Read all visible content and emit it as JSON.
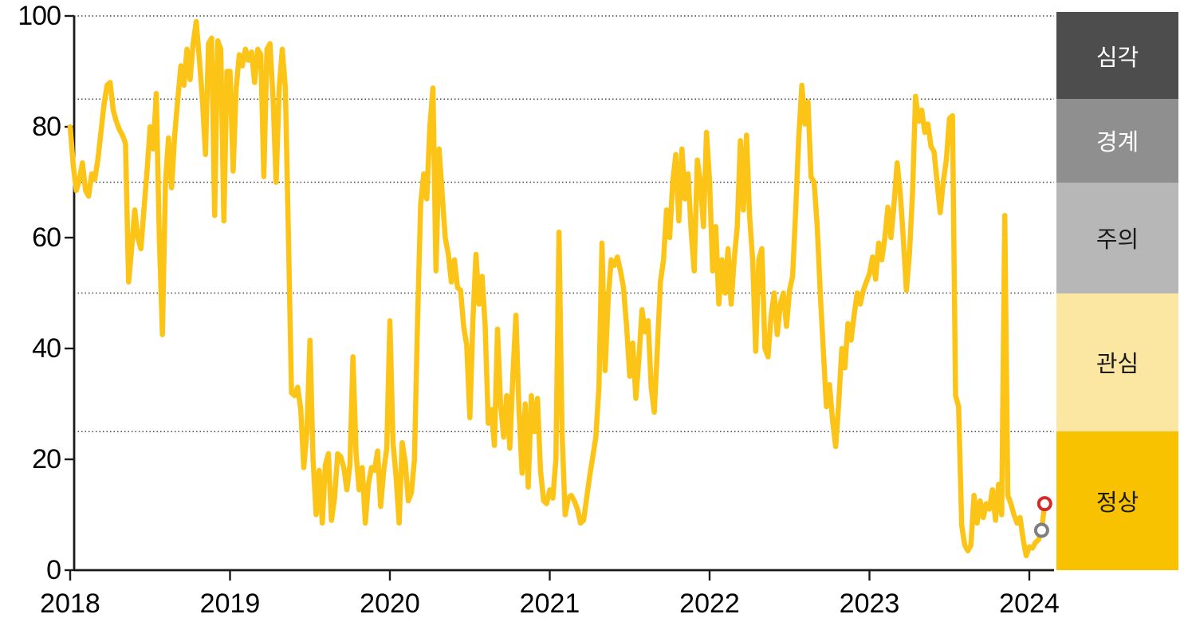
{
  "chart_data": {
    "type": "line",
    "title": "",
    "x_axis": {
      "tick_labels": [
        "2018",
        "2019",
        "2020",
        "2021",
        "2022",
        "2023",
        "2024"
      ],
      "start_year": 2018,
      "points_per_year": 52
    },
    "y_axis": {
      "ticks": [
        0,
        20,
        40,
        60,
        80,
        100
      ],
      "range": [
        0,
        100
      ]
    },
    "gridlines": [
      25,
      50,
      70,
      85,
      100
    ],
    "grid_style": "dotted",
    "series": [
      {
        "name": "risk-index",
        "color": "#FCC416",
        "values": [
          80,
          73,
          68.5,
          70.5,
          73.5,
          68.5,
          67.5,
          71.5,
          70.5,
          74,
          79,
          84,
          87.5,
          88,
          83,
          81,
          79.5,
          78.5,
          77,
          52,
          58,
          65,
          60,
          58,
          65,
          72,
          80,
          76,
          86,
          60,
          42.5,
          70,
          78,
          69,
          78.5,
          85,
          91,
          87.5,
          94,
          88.5,
          95,
          99,
          92.5,
          85,
          75,
          95,
          96,
          64,
          95.5,
          94,
          63,
          90,
          90,
          72,
          87,
          93,
          91,
          94,
          92,
          93.5,
          88,
          94,
          93,
          71,
          94,
          95,
          85,
          70,
          87,
          94,
          87,
          60,
          32,
          31.5,
          33,
          29,
          18.5,
          25,
          41.5,
          20,
          10,
          18,
          8.5,
          19,
          21,
          9,
          13,
          21,
          20.5,
          18.5,
          14.5,
          19,
          38.5,
          21,
          14.5,
          18.5,
          8.5,
          15.5,
          18.5,
          18,
          21.5,
          11.5,
          18,
          22,
          45,
          23,
          17,
          8.5,
          23,
          19.5,
          12.5,
          14,
          20,
          45,
          66,
          71.5,
          67,
          80,
          87,
          54,
          76,
          68,
          60,
          57,
          52,
          56,
          51,
          50.5,
          44,
          40.5,
          27.5,
          45,
          57,
          48,
          53,
          44,
          26.5,
          29,
          22.5,
          43.5,
          30,
          24,
          31.5,
          22,
          35,
          46,
          29,
          17.5,
          30,
          15,
          31.5,
          25,
          31,
          18,
          12.5,
          12,
          14.5,
          13,
          20,
          61,
          25,
          10,
          13,
          13.5,
          12.5,
          11,
          8.5,
          9,
          13,
          17,
          20.5,
          24,
          33,
          59,
          36,
          49,
          56,
          55,
          56.5,
          54,
          51,
          44,
          35,
          41,
          31,
          38,
          47,
          43,
          45,
          33,
          28.5,
          40,
          52,
          56,
          65,
          60,
          70,
          75,
          63,
          76,
          67,
          71.5,
          61,
          54,
          74,
          70,
          62,
          79,
          70,
          54,
          62,
          48,
          56,
          50,
          58,
          48,
          56,
          62,
          77.5,
          65,
          78.5,
          64,
          56,
          39.5,
          56,
          58,
          40,
          38.5,
          46,
          50,
          42.5,
          48,
          50,
          44,
          50.5,
          53,
          65,
          78,
          87.5,
          80.5,
          84.5,
          71,
          70,
          62,
          50,
          39.5,
          29.5,
          33.5,
          27,
          22.3,
          30,
          40,
          36.5,
          44.5,
          41.5,
          46,
          50,
          48,
          50.5,
          52,
          53.5,
          56.5,
          52.5,
          59,
          56,
          60,
          65.5,
          60,
          66,
          73.5,
          68,
          60,
          50.5,
          57,
          68,
          85.5,
          81,
          83,
          79,
          80.5,
          76.5,
          75.5,
          70,
          64.5,
          70,
          74,
          81.5,
          82,
          31.5,
          29.5,
          8,
          4.5,
          3.5,
          4.5,
          13.5,
          8.5,
          12.5,
          9.5,
          12,
          11,
          14.5,
          9,
          15.5,
          10,
          64,
          13.5,
          12,
          10,
          8.5,
          9.5,
          5.5,
          2.6,
          4.2,
          4,
          5,
          5.5,
          7.2,
          12
        ]
      }
    ],
    "end_markers": [
      {
        "name": "previous-value",
        "value": 7.2,
        "color": "#7F7F7F"
      },
      {
        "name": "latest-value",
        "value": 12,
        "color": "#D42B29"
      }
    ],
    "risk_bands": [
      {
        "label": "심각",
        "range": [
          85,
          100
        ],
        "color": "#4D4D4D",
        "text_color": "#FFFFFF"
      },
      {
        "label": "경계",
        "range": [
          70,
          85
        ],
        "color": "#8F8F8F",
        "text_color": "#FFFFFF"
      },
      {
        "label": "주의",
        "range": [
          50,
          70
        ],
        "color": "#B7B7B7",
        "text_color": "#1A1A1A"
      },
      {
        "label": "관심",
        "range": [
          25,
          50
        ],
        "color": "#FBE6A2",
        "text_color": "#1A1A1A"
      },
      {
        "label": "정상",
        "range": [
          0,
          25
        ],
        "color": "#F9C200",
        "text_color": "#1A1A1A"
      }
    ],
    "axis_color": "#1A1A1A",
    "gridline_color": "#444444"
  }
}
